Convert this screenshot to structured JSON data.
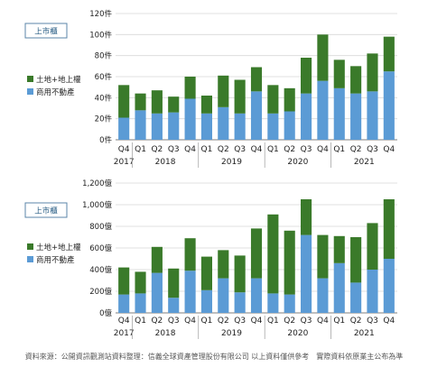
{
  "colors": {
    "green": "#3a7a2a",
    "blue": "#5b9bd5",
    "grid": "#d9d9d9",
    "axis": "#555555",
    "tag_border": "#5b86a8"
  },
  "x_labels": [
    {
      "label": "Q4",
      "year": "2017"
    },
    {
      "label": "Q1",
      "year": ""
    },
    {
      "label": "Q2",
      "year": "2018"
    },
    {
      "label": "Q3",
      "year": ""
    },
    {
      "label": "Q4",
      "year": ""
    },
    {
      "label": "Q1",
      "year": ""
    },
    {
      "label": "Q2",
      "year": "2019"
    },
    {
      "label": "Q3",
      "year": ""
    },
    {
      "label": "Q4",
      "year": ""
    },
    {
      "label": "Q1",
      "year": ""
    },
    {
      "label": "Q2",
      "year": "2020"
    },
    {
      "label": "Q3",
      "year": ""
    },
    {
      "label": "Q4",
      "year": ""
    },
    {
      "label": "Q1",
      "year": ""
    },
    {
      "label": "Q2",
      "year": "2021"
    },
    {
      "label": "Q3",
      "year": ""
    },
    {
      "label": "Q4",
      "year": ""
    }
  ],
  "chart_data": [
    {
      "type": "bar",
      "stacked": true,
      "tag": "上市櫃",
      "ylim": [
        0,
        120
      ],
      "y_ticks": [
        0,
        20,
        40,
        60,
        80,
        100,
        120
      ],
      "y_tick_labels": [
        "0件",
        "20件",
        "40件",
        "60件",
        "80件",
        "100件",
        "120件"
      ],
      "categories": [
        "Q4 2017",
        "Q1 2018",
        "Q2 2018",
        "Q3 2018",
        "Q4 2018",
        "Q1 2019",
        "Q2 2019",
        "Q3 2019",
        "Q4 2019",
        "Q1 2020",
        "Q2 2020",
        "Q3 2020",
        "Q4 2020",
        "Q1 2021",
        "Q2 2021",
        "Q3 2021",
        "Q4 2021"
      ],
      "legend": [
        "土地+地上權",
        "商用不動產"
      ],
      "series": [
        {
          "name": "商用不動產",
          "values": [
            21,
            28,
            25,
            26,
            39,
            25,
            31,
            25,
            46,
            25,
            27,
            44,
            56,
            49,
            44,
            46,
            65
          ]
        },
        {
          "name": "土地+地上權",
          "values": [
            31,
            16,
            22,
            15,
            21,
            17,
            30,
            32,
            23,
            27,
            22,
            34,
            44,
            27,
            26,
            36,
            33
          ]
        }
      ]
    },
    {
      "type": "bar",
      "stacked": true,
      "tag": "上市櫃",
      "ylim": [
        0,
        1200
      ],
      "y_ticks": [
        0,
        200,
        400,
        600,
        800,
        1000,
        1200
      ],
      "y_tick_labels": [
        "0億",
        "200億",
        "400億",
        "600億",
        "800億",
        "1,000億",
        "1,200億"
      ],
      "categories": [
        "Q4 2017",
        "Q1 2018",
        "Q2 2018",
        "Q3 2018",
        "Q4 2018",
        "Q1 2019",
        "Q2 2019",
        "Q3 2019",
        "Q4 2019",
        "Q1 2020",
        "Q2 2020",
        "Q3 2020",
        "Q4 2020",
        "Q1 2021",
        "Q2 2021",
        "Q3 2021",
        "Q4 2021"
      ],
      "legend": [
        "土地+地上權",
        "商用不動產"
      ],
      "series": [
        {
          "name": "商用不動產",
          "values": [
            170,
            180,
            370,
            140,
            390,
            210,
            320,
            190,
            320,
            180,
            170,
            720,
            320,
            460,
            280,
            400,
            500
          ]
        },
        {
          "name": "土地+地上權",
          "values": [
            250,
            200,
            240,
            270,
            300,
            310,
            260,
            340,
            460,
            730,
            590,
            330,
            400,
            250,
            420,
            430,
            550
          ]
        }
      ]
    }
  ],
  "source_note": "資料來源：公開資訊觀測站資料整理：信義全球資產管理股份有限公司 以上資料僅供參考　實際資料依原業主公布為準"
}
